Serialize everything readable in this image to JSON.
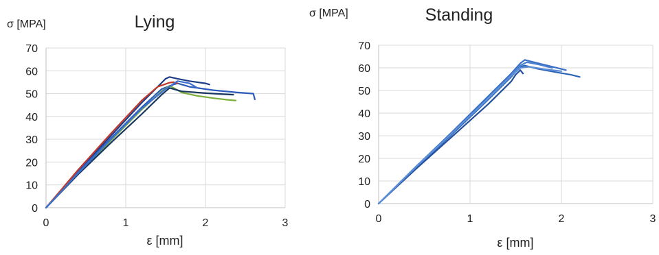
{
  "chart_data": [
    {
      "type": "line",
      "title": "Lying",
      "ylabel": "σ [MPA]",
      "xlabel": "ε [mm]",
      "xlim": [
        0,
        3
      ],
      "ylim": [
        0,
        70
      ],
      "xticks": [
        "0",
        "1",
        "2",
        "3"
      ],
      "yticks": [
        "0",
        "10",
        "20",
        "30",
        "40",
        "50",
        "60",
        "70"
      ],
      "grid": true,
      "series": [
        {
          "color": "#1f3c88",
          "x": [
            0,
            0.4,
            0.8,
            1.2,
            1.4,
            1.5,
            1.55,
            1.65,
            1.8,
            2.0,
            2.05
          ],
          "y": [
            0,
            16,
            31,
            46,
            53,
            56.5,
            57.3,
            56.5,
            55.5,
            54.5,
            54
          ]
        },
        {
          "color": "#2a5bb8",
          "x": [
            0,
            0.4,
            0.8,
            1.2,
            1.45,
            1.6,
            1.65,
            1.8,
            2.1,
            2.4,
            2.6,
            2.62
          ],
          "y": [
            0,
            15.5,
            30,
            44,
            52,
            54,
            54.5,
            53,
            51.5,
            50.5,
            50,
            47.5
          ]
        },
        {
          "color": "#c0392b",
          "x": [
            0,
            0.4,
            0.8,
            1.2,
            1.4,
            1.55,
            1.6,
            1.65
          ],
          "y": [
            0,
            16.5,
            32,
            47,
            53,
            54.8,
            55,
            54.5
          ]
        },
        {
          "color": "#7cae3c",
          "x": [
            0,
            0.4,
            0.8,
            1.2,
            1.45,
            1.55,
            1.7,
            1.9,
            2.1,
            2.3,
            2.38
          ],
          "y": [
            0,
            15,
            29,
            43,
            51,
            53.5,
            50.5,
            49,
            48,
            47.2,
            47
          ]
        },
        {
          "color": "#17375e",
          "x": [
            0,
            0.4,
            0.8,
            1.2,
            1.45,
            1.55,
            1.7,
            2.0,
            2.3,
            2.35
          ],
          "y": [
            0,
            14.5,
            28,
            41,
            49.5,
            52.5,
            51,
            50.2,
            49.6,
            49.5
          ]
        },
        {
          "color": "#3c6fcf",
          "x": [
            0,
            0.4,
            0.8,
            1.2,
            1.5,
            1.65,
            1.8,
            1.9
          ],
          "y": [
            0,
            15,
            29.5,
            43.5,
            52,
            55.5,
            54.5,
            52.5
          ]
        }
      ]
    },
    {
      "type": "line",
      "title": "Standing",
      "ylabel": "σ [MPA]",
      "xlabel": "ε [mm]",
      "xlim": [
        0,
        3
      ],
      "ylim": [
        0,
        70
      ],
      "xticks": [
        "0",
        "1",
        "2",
        "3"
      ],
      "yticks": [
        "0",
        "10",
        "20",
        "30",
        "40",
        "50",
        "60",
        "70"
      ],
      "grid": true,
      "series": [
        {
          "color": "#2e64b6",
          "x": [
            0,
            0.4,
            0.8,
            1.2,
            1.45,
            1.55,
            1.6,
            1.75,
            1.95,
            2.1,
            2.2
          ],
          "y": [
            0,
            15.5,
            30.5,
            46,
            56,
            60.5,
            61,
            59.5,
            58,
            57,
            56
          ]
        },
        {
          "color": "#3a70c4",
          "x": [
            0,
            0.4,
            0.8,
            1.2,
            1.45,
            1.55,
            1.6,
            1.75,
            1.9,
            2.05
          ],
          "y": [
            0,
            16,
            31.5,
            47.5,
            57.5,
            62,
            63.5,
            62,
            60.5,
            59
          ]
        },
        {
          "color": "#4a7fd0",
          "x": [
            0,
            0.4,
            0.8,
            1.2,
            1.45,
            1.55,
            1.62,
            1.75,
            1.9
          ],
          "y": [
            0,
            16,
            31,
            46.5,
            56.5,
            61,
            62.5,
            61.5,
            60
          ]
        },
        {
          "color": "#234f9c",
          "x": [
            0,
            0.4,
            0.8,
            1.2,
            1.45,
            1.5,
            1.55,
            1.58
          ],
          "y": [
            0,
            15,
            29.5,
            44,
            54,
            57,
            59,
            57.5
          ]
        },
        {
          "color": "#5b8fd8",
          "x": [
            0,
            0.4,
            0.8,
            1.2,
            1.45,
            1.55,
            1.65,
            1.8,
            2.0
          ],
          "y": [
            0,
            15.8,
            31,
            46.5,
            56.5,
            60,
            60.5,
            59.5,
            58.5
          ]
        }
      ]
    }
  ]
}
